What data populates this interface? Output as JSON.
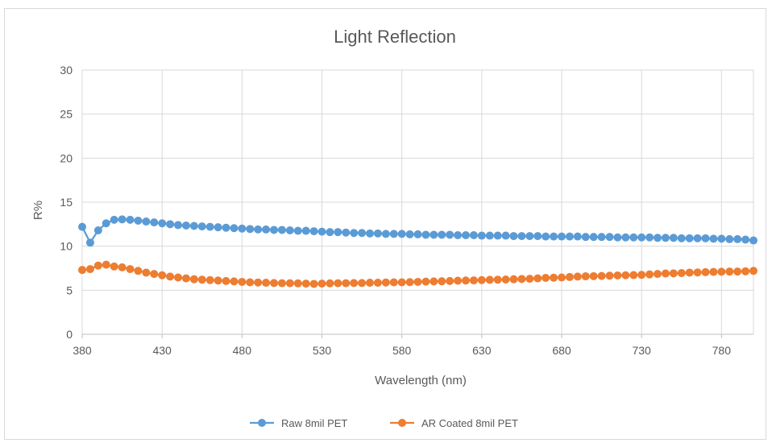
{
  "chart_data": {
    "type": "line",
    "title": "Light Reflection",
    "xlabel": "Wavelength (nm)",
    "ylabel": "R%",
    "xlim": [
      380,
      800
    ],
    "ylim": [
      0,
      30
    ],
    "x_ticks": [
      380,
      430,
      480,
      530,
      580,
      630,
      680,
      730,
      780
    ],
    "y_ticks": [
      0,
      5,
      10,
      15,
      20,
      25,
      30
    ],
    "grid": true,
    "legend_position": "bottom",
    "x": [
      380,
      385,
      390,
      395,
      400,
      405,
      410,
      415,
      420,
      425,
      430,
      435,
      440,
      445,
      450,
      455,
      460,
      465,
      470,
      475,
      480,
      485,
      490,
      495,
      500,
      505,
      510,
      515,
      520,
      525,
      530,
      535,
      540,
      545,
      550,
      555,
      560,
      565,
      570,
      575,
      580,
      585,
      590,
      595,
      600,
      605,
      610,
      615,
      620,
      625,
      630,
      635,
      640,
      645,
      650,
      655,
      660,
      665,
      670,
      675,
      680,
      685,
      690,
      695,
      700,
      705,
      710,
      715,
      720,
      725,
      730,
      735,
      740,
      745,
      750,
      755,
      760,
      765,
      770,
      775,
      780,
      785,
      790,
      795,
      800
    ],
    "series": [
      {
        "name": "Raw 8mil PET",
        "color": "#5b9bd5",
        "values": [
          12.2,
          10.4,
          11.8,
          12.6,
          13.0,
          13.05,
          13.0,
          12.9,
          12.8,
          12.7,
          12.6,
          12.5,
          12.4,
          12.35,
          12.3,
          12.25,
          12.2,
          12.15,
          12.1,
          12.05,
          12.0,
          11.95,
          11.9,
          11.9,
          11.85,
          11.85,
          11.8,
          11.75,
          11.75,
          11.7,
          11.65,
          11.6,
          11.6,
          11.55,
          11.5,
          11.5,
          11.45,
          11.45,
          11.4,
          11.4,
          11.4,
          11.35,
          11.35,
          11.3,
          11.3,
          11.3,
          11.3,
          11.25,
          11.25,
          11.25,
          11.2,
          11.2,
          11.2,
          11.2,
          11.15,
          11.15,
          11.15,
          11.15,
          11.1,
          11.1,
          11.1,
          11.1,
          11.1,
          11.05,
          11.05,
          11.05,
          11.05,
          11.0,
          11.0,
          11.0,
          11.0,
          11.0,
          10.95,
          10.95,
          10.95,
          10.9,
          10.9,
          10.9,
          10.9,
          10.85,
          10.85,
          10.8,
          10.8,
          10.75,
          10.65
        ]
      },
      {
        "name": "AR Coated 8mil PET",
        "color": "#ed7d31",
        "values": [
          7.3,
          7.4,
          7.8,
          7.9,
          7.7,
          7.6,
          7.4,
          7.2,
          7.0,
          6.85,
          6.7,
          6.55,
          6.45,
          6.35,
          6.25,
          6.2,
          6.15,
          6.1,
          6.05,
          6.0,
          5.95,
          5.9,
          5.88,
          5.85,
          5.82,
          5.8,
          5.8,
          5.78,
          5.75,
          5.72,
          5.75,
          5.78,
          5.8,
          5.8,
          5.82,
          5.82,
          5.85,
          5.85,
          5.88,
          5.9,
          5.9,
          5.92,
          5.95,
          5.98,
          6.0,
          6.02,
          6.05,
          6.08,
          6.1,
          6.12,
          6.15,
          6.18,
          6.2,
          6.22,
          6.25,
          6.28,
          6.3,
          6.35,
          6.4,
          6.42,
          6.45,
          6.5,
          6.55,
          6.58,
          6.6,
          6.62,
          6.65,
          6.68,
          6.7,
          6.72,
          6.75,
          6.8,
          6.85,
          6.9,
          6.92,
          6.95,
          7.0,
          7.02,
          7.05,
          7.08,
          7.1,
          7.12,
          7.12,
          7.15,
          7.2
        ]
      }
    ]
  }
}
